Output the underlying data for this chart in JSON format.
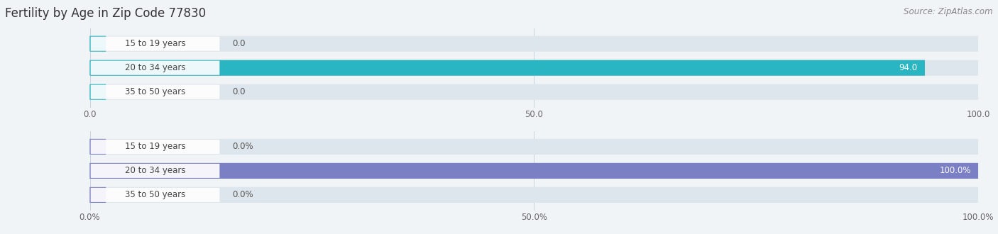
{
  "title": "Fertility by Age in Zip Code 77830",
  "source": "Source: ZipAtlas.com",
  "top_chart": {
    "categories": [
      "15 to 19 years",
      "20 to 34 years",
      "35 to 50 years"
    ],
    "values": [
      0.0,
      94.0,
      0.0
    ],
    "xlim": [
      0,
      100
    ],
    "xticks": [
      0.0,
      50.0,
      100.0
    ],
    "xticklabels": [
      "0.0",
      "50.0",
      "100.0"
    ],
    "bar_color": "#2ab5c2",
    "bar_bg_color": "#dde6ed",
    "label_bg_color": "#ffffff"
  },
  "bottom_chart": {
    "categories": [
      "15 to 19 years",
      "20 to 34 years",
      "35 to 50 years"
    ],
    "values": [
      0.0,
      100.0,
      0.0
    ],
    "xlim": [
      0,
      100
    ],
    "xticks": [
      0.0,
      50.0,
      100.0
    ],
    "xticklabels": [
      "0.0%",
      "50.0%",
      "100.0%"
    ],
    "bar_color": "#7b7fc4",
    "bar_bg_color": "#dde6ed",
    "label_bg_color": "#ffffff"
  },
  "title_fontsize": 12,
  "source_fontsize": 8.5,
  "label_fontsize": 8.5,
  "value_fontsize": 8.5,
  "tick_fontsize": 8.5,
  "background_color": "#f0f4f7"
}
